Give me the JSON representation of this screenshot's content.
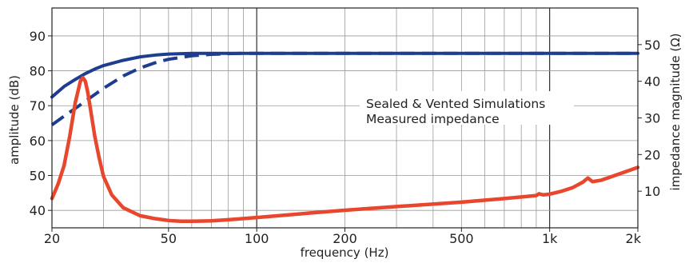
{
  "chart_data": {
    "type": "line",
    "title": "",
    "xlabel": "frequency (Hz)",
    "ylabel": "amplitude (dB)",
    "y2label": "impedance magnitude (Ω)",
    "xscale": "log",
    "xlim": [
      20,
      2000
    ],
    "ylim": [
      35,
      98
    ],
    "y2lim": [
      0,
      60
    ],
    "x_ticks": [
      {
        "value": 20,
        "label": "20"
      },
      {
        "value": 50,
        "label": "50"
      },
      {
        "value": 100,
        "label": "100"
      },
      {
        "value": 200,
        "label": "200"
      },
      {
        "value": 500,
        "label": "500"
      },
      {
        "value": 1000,
        "label": "1k"
      },
      {
        "value": 2000,
        "label": "2k"
      }
    ],
    "y_ticks": [
      40,
      50,
      60,
      70,
      80,
      90
    ],
    "y2_ticks": [
      10,
      20,
      30,
      40,
      50
    ],
    "grid": true,
    "annotations": [
      "Sealed & Vented Simulations",
      "Measured impedance"
    ],
    "series": [
      {
        "axis": "left",
        "style": "solid",
        "color": "#1f3d8f",
        "x": [
          20,
          22,
          24,
          26,
          28,
          30,
          35,
          40,
          45,
          50,
          60,
          70,
          80,
          100,
          150,
          200,
          500,
          1000,
          2000
        ],
        "y": [
          72.5,
          75.5,
          77.5,
          79.2,
          80.5,
          81.5,
          83.0,
          84.0,
          84.5,
          84.8,
          85.0,
          85.0,
          85.0,
          85.0,
          85.0,
          85.0,
          85.0,
          85.0,
          85.0
        ]
      },
      {
        "axis": "left",
        "style": "dashed",
        "color": "#1f3d8f",
        "x": [
          20,
          22,
          24,
          26,
          28,
          30,
          35,
          40,
          45,
          50,
          60,
          70,
          80,
          90,
          100,
          150,
          200,
          500,
          1000,
          2000
        ],
        "y": [
          64.5,
          67.0,
          69.2,
          71.3,
          73.2,
          75.0,
          78.5,
          80.8,
          82.3,
          83.3,
          84.3,
          84.7,
          84.9,
          85.0,
          85.0,
          85.0,
          85.0,
          85.0,
          85.0,
          85.0
        ]
      },
      {
        "axis": "right",
        "style": "solid",
        "color": "#e8472e",
        "x": [
          20,
          21,
          22,
          23,
          24,
          25,
          25.5,
          26,
          26.5,
          27,
          28,
          29,
          30,
          32,
          35,
          40,
          45,
          50,
          55,
          60,
          70,
          80,
          100,
          150,
          200,
          300,
          500,
          700,
          900,
          920,
          950,
          1000,
          1100,
          1200,
          1300,
          1350,
          1400,
          1500,
          1700,
          2000
        ],
        "y": [
          8,
          12,
          17,
          25,
          34,
          40,
          41,
          40,
          37,
          33,
          25,
          19,
          14,
          9,
          5.5,
          3.3,
          2.5,
          2.0,
          1.8,
          1.8,
          1.9,
          2.2,
          2.8,
          4.0,
          4.8,
          5.8,
          7.0,
          8.0,
          8.8,
          9.3,
          9.0,
          9.2,
          10.0,
          11.0,
          12.5,
          13.6,
          12.6,
          13.0,
          14.5,
          16.5
        ]
      }
    ]
  }
}
